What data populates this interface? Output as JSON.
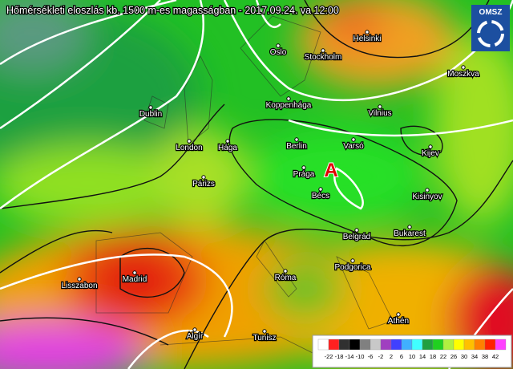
{
  "title": "Hőmérsékleti eloszlás kb. 1500 m-es magasságban - 2017.09.24. va 12:00",
  "logo": "OMSZ",
  "marker": "A",
  "cities": [
    "Helsinki",
    "Oslo",
    "Stockholm",
    "Moszkva",
    "Koppenhága",
    "Dublin",
    "Vilnius",
    "London",
    "Hága",
    "Berlin",
    "Varsó",
    "Kijev",
    "Párizs",
    "Prága",
    "Bécs",
    "Kisinyov",
    "Belgrád",
    "Bukarest",
    "Lisszabon",
    "Madrid",
    "Róma",
    "Podgorica",
    "Athén",
    "Algír",
    "Tunisz"
  ],
  "legend": {
    "ticks": [
      -22,
      -18,
      -14,
      -10,
      -6,
      -2,
      2,
      6,
      10,
      14,
      18,
      22,
      26,
      30,
      34,
      38,
      42
    ],
    "colors": [
      "#ffffff",
      "#ff2020",
      "#303030",
      "#000000",
      "#808080",
      "#c8c8c8",
      "#a040c0",
      "#4040ff",
      "#40b0ff",
      "#40ffff",
      "#20a040",
      "#20d020",
      "#b0f040",
      "#ffff00",
      "#ffc000",
      "#ff8000",
      "#ff2000",
      "#ff40ff"
    ]
  }
}
